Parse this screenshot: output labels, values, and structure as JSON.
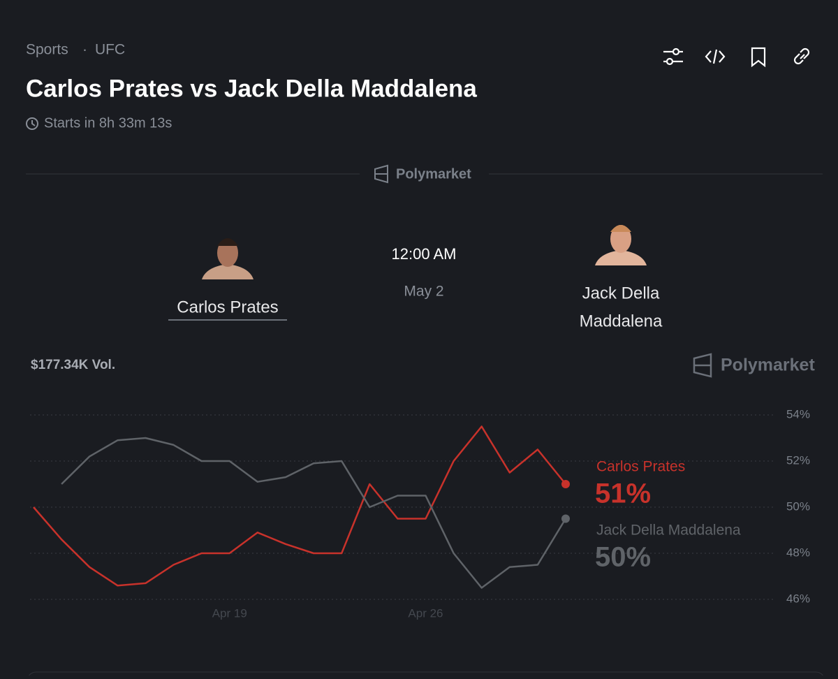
{
  "header": {
    "breadcrumb": [
      "Sports",
      "UFC"
    ],
    "title": "Carlos Prates vs Jack Della Maddalena",
    "countdown": "Starts in 8h 33m 13s",
    "source": "Polymarket"
  },
  "matchup": {
    "fighter_a": "Carlos Prates",
    "time": "12:00 AM",
    "date": "May 2",
    "fighter_b": [
      "Jack Della",
      "Maddalena"
    ]
  },
  "volume": "$177.34K Vol.",
  "chart_data": {
    "type": "line",
    "x": [
      "Apr 12",
      "Apr 13",
      "Apr 14",
      "Apr 15",
      "Apr 16",
      "Apr 17",
      "Apr 18",
      "Apr 19",
      "Apr 20",
      "Apr 21",
      "Apr 22",
      "Apr 23",
      "Apr 24",
      "Apr 25",
      "Apr 26",
      "Apr 27",
      "Apr 28",
      "Apr 29",
      "Apr 30",
      "May 1"
    ],
    "series": [
      {
        "name": "Carlos Prates",
        "color": "#c8322b",
        "values": [
          50,
          48.6,
          47.4,
          46.6,
          46.7,
          47.5,
          48,
          48,
          48.9,
          48.4,
          48,
          48,
          51,
          49.5,
          49.5,
          52,
          53.5,
          51.5,
          52.5,
          51
        ],
        "value_labels": [
          null,
          null,
          null,
          null,
          null,
          null,
          null,
          null,
          null,
          null,
          null,
          null,
          null,
          null,
          null,
          null,
          null,
          null,
          null,
          "51%"
        ]
      },
      {
        "name": "Jack Della Maddalena",
        "color": "#5f6368",
        "values": [
          null,
          51,
          52.2,
          52.9,
          53,
          52.7,
          52,
          52,
          51.1,
          51.3,
          51.9,
          52,
          50,
          50.5,
          50.5,
          48,
          46.5,
          47.4,
          47.5,
          49.5
        ],
        "value_labels": [
          null,
          null,
          null,
          null,
          null,
          null,
          null,
          null,
          null,
          null,
          null,
          null,
          null,
          null,
          null,
          null,
          null,
          null,
          null,
          "50%"
        ]
      }
    ],
    "xticks": [
      "Apr 19",
      "Apr 26"
    ],
    "ylim": [
      46,
      54
    ],
    "yticks": [
      {
        "value": 46,
        "label": "46%"
      },
      {
        "value": 48,
        "label": "48%"
      },
      {
        "value": 50,
        "label": "50%"
      },
      {
        "value": 52,
        "label": "52%"
      },
      {
        "value": 54,
        "label": "54%"
      }
    ],
    "grid": true
  }
}
